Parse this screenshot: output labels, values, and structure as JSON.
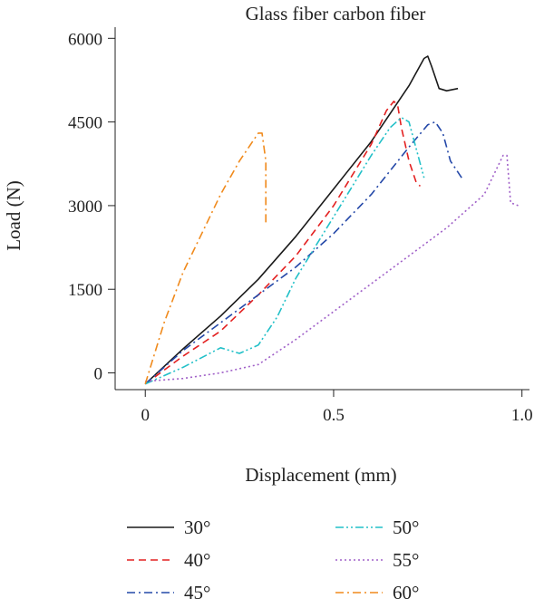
{
  "chart_data": {
    "type": "line",
    "title": "Glass fiber carbon fiber",
    "xlabel": "Displacement (mm)",
    "ylabel": "Load (N)",
    "xlim": [
      -0.08,
      1.02
    ],
    "ylim": [
      -300,
      6200
    ],
    "xticks": [
      0,
      0.5,
      1.0
    ],
    "xtick_labels": [
      "0",
      "0.5",
      "1.0"
    ],
    "yticks": [
      0,
      1500,
      3000,
      4500,
      6000
    ],
    "ytick_labels": [
      "0",
      "1500",
      "3000",
      "4500",
      "6000"
    ],
    "grid": false,
    "legend_position": "bottom",
    "series": [
      {
        "name": "30°",
        "color": "#1a1a1a",
        "dash": "solid",
        "x": [
          0,
          0.1,
          0.2,
          0.3,
          0.4,
          0.5,
          0.6,
          0.7,
          0.74,
          0.75,
          0.76,
          0.78,
          0.8,
          0.83
        ],
        "y": [
          -200,
          430,
          1020,
          1680,
          2450,
          3300,
          4150,
          5150,
          5640,
          5680,
          5500,
          5100,
          5060,
          5100
        ]
      },
      {
        "name": "40°",
        "color": "#e32020",
        "dash": "dash",
        "x": [
          0,
          0.1,
          0.2,
          0.3,
          0.4,
          0.5,
          0.6,
          0.64,
          0.66,
          0.67,
          0.68,
          0.7,
          0.72,
          0.73
        ],
        "y": [
          -200,
          300,
          750,
          1400,
          2100,
          3000,
          4100,
          4700,
          4870,
          4800,
          4400,
          3800,
          3400,
          3350
        ]
      },
      {
        "name": "45°",
        "color": "#2448a8",
        "dash": "dashdot",
        "x": [
          0,
          0.1,
          0.2,
          0.3,
          0.4,
          0.5,
          0.6,
          0.7,
          0.75,
          0.77,
          0.79,
          0.81,
          0.84
        ],
        "y": [
          -200,
          400,
          900,
          1400,
          1900,
          2500,
          3200,
          4050,
          4450,
          4500,
          4300,
          3800,
          3500
        ]
      },
      {
        "name": "50°",
        "color": "#22c0c8",
        "dash": "dashdotdot",
        "x": [
          0,
          0.1,
          0.2,
          0.25,
          0.3,
          0.35,
          0.4,
          0.5,
          0.6,
          0.65,
          0.68,
          0.7,
          0.72,
          0.74
        ],
        "y": [
          -200,
          100,
          450,
          350,
          500,
          1000,
          1700,
          2800,
          3900,
          4400,
          4580,
          4500,
          4000,
          3500
        ]
      },
      {
        "name": "55°",
        "color": "#a060c8",
        "dash": "dot",
        "x": [
          0,
          0.1,
          0.2,
          0.3,
          0.4,
          0.5,
          0.6,
          0.7,
          0.8,
          0.9,
          0.95,
          0.96,
          0.97,
          0.99
        ],
        "y": [
          -150,
          -100,
          0,
          150,
          600,
          1100,
          1600,
          2100,
          2600,
          3200,
          3900,
          3900,
          3050,
          3000
        ]
      },
      {
        "name": "60°",
        "color": "#f08a1c",
        "dash": "dashdot",
        "x": [
          0,
          0.05,
          0.1,
          0.15,
          0.2,
          0.25,
          0.3,
          0.31,
          0.32,
          0.32
        ],
        "y": [
          -200,
          900,
          1800,
          2500,
          3200,
          3800,
          4300,
          4300,
          3800,
          2700
        ]
      }
    ]
  }
}
